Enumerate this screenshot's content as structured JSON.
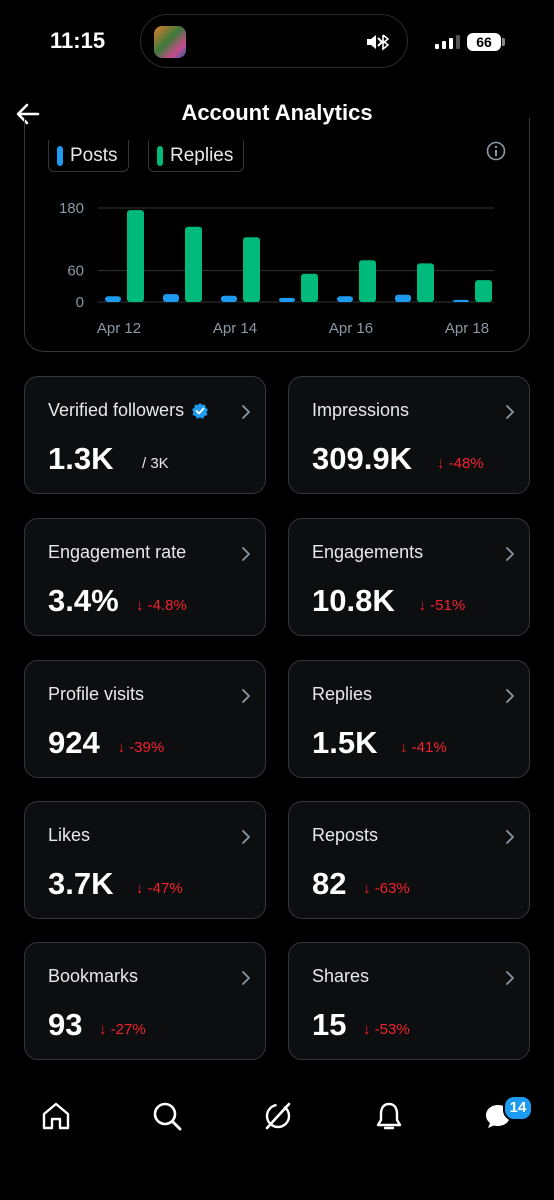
{
  "status_bar": {
    "time": "11:15",
    "battery": "66"
  },
  "header": {
    "title": "Account Analytics"
  },
  "colors": {
    "posts": "#1d9bf0",
    "replies": "#00ba7c",
    "negative": "#f4212e",
    "verified": "#1d9bf0"
  },
  "chart_data": {
    "type": "bar",
    "categories": [
      "Apr 12",
      "Apr 13",
      "Apr 14",
      "Apr 15",
      "Apr 16",
      "Apr 17",
      "Apr 18"
    ],
    "x_tick_labels": [
      "Apr 12",
      "Apr 14",
      "Apr 16",
      "Apr 18"
    ],
    "y_tick_labels": [
      "180",
      "60",
      "0"
    ],
    "y_ticks": [
      180,
      60,
      0
    ],
    "ylim": [
      0,
      190
    ],
    "grid": true,
    "legend_position": "top-left",
    "series": [
      {
        "name": "Posts",
        "values": [
          11,
          15,
          12,
          8,
          11,
          14,
          4
        ]
      },
      {
        "name": "Replies",
        "values": [
          176,
          144,
          124,
          54,
          80,
          74,
          42
        ]
      }
    ]
  },
  "metrics": [
    {
      "label": "Verified followers",
      "value": "1.3K",
      "sub": "/ 3K",
      "verified": true
    },
    {
      "label": "Impressions",
      "value": "309.9K",
      "change": "↓ -48%"
    },
    {
      "label": "Engagement rate",
      "value": "3.4%",
      "change": "↓ -4.8%"
    },
    {
      "label": "Engagements",
      "value": "10.8K",
      "change": "↓ -51%"
    },
    {
      "label": "Profile visits",
      "value": "924",
      "change": "↓ -39%"
    },
    {
      "label": "Replies",
      "value": "1.5K",
      "change": "↓ -41%"
    },
    {
      "label": "Likes",
      "value": "3.7K",
      "change": "↓ -47%"
    },
    {
      "label": "Reposts",
      "value": "82",
      "change": "↓ -63%"
    },
    {
      "label": "Bookmarks",
      "value": "93",
      "change": "↓ -27%"
    },
    {
      "label": "Shares",
      "value": "15",
      "change": "↓ -53%"
    }
  ],
  "bottom_nav": {
    "icons": [
      "home-icon",
      "search-icon",
      "grok-icon",
      "notifications-icon",
      "messages-icon"
    ],
    "messages_badge": "14"
  }
}
